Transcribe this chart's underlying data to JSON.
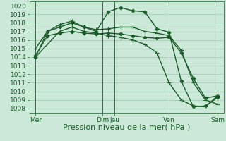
{
  "xlabel": "Pression niveau de la mer( hPa )",
  "bg_color": "#cce8d8",
  "grid_color": "#9cc8b0",
  "line_color": "#1a5c28",
  "vline_color": "#3a6a48",
  "ylim": [
    1007.5,
    1020.5
  ],
  "yticks": [
    1008,
    1009,
    1010,
    1011,
    1012,
    1013,
    1014,
    1015,
    1016,
    1017,
    1018,
    1019,
    1020
  ],
  "xlim": [
    0,
    16
  ],
  "day_positions": [
    0.5,
    6.0,
    7.0,
    11.5,
    15.5
  ],
  "day_labels": [
    "Mer",
    "Dim",
    "Jeu",
    "Ven",
    "Sam"
  ],
  "vline_positions": [
    0.5,
    6.0,
    7.0,
    11.5,
    15.5
  ],
  "series": [
    {
      "x": [
        0.5,
        1.5,
        2.5,
        3.5,
        4.5,
        5.5,
        6.5,
        7.5,
        8.5,
        9.5,
        10.5,
        11.5,
        12.5,
        13.5,
        14.5,
        15.5
      ],
      "y": [
        1014.0,
        1017.0,
        1017.5,
        1018.0,
        1017.5,
        1017.0,
        1019.3,
        1019.8,
        1019.4,
        1019.3,
        1017.3,
        1016.9,
        1011.2,
        1008.2,
        1008.3,
        1009.3
      ],
      "marker": "D",
      "markersize": 2.5
    },
    {
      "x": [
        0.5,
        1.5,
        2.5,
        3.5,
        4.5,
        5.5,
        6.5,
        7.5,
        8.5,
        9.5,
        10.5,
        11.5,
        12.5,
        13.5,
        14.5,
        15.5
      ],
      "y": [
        1015.0,
        1017.0,
        1017.8,
        1018.2,
        1017.5,
        1017.2,
        1017.3,
        1017.5,
        1017.5,
        1017.0,
        1016.8,
        1016.5,
        1014.8,
        1011.0,
        1009.0,
        1008.5
      ],
      "marker": "+",
      "markersize": 4
    },
    {
      "x": [
        0.5,
        1.5,
        2.5,
        3.5,
        4.5,
        5.5,
        6.5,
        7.5,
        8.5,
        9.5,
        10.5,
        11.5,
        12.5,
        13.5,
        14.5,
        15.5
      ],
      "y": [
        1014.2,
        1016.5,
        1016.8,
        1017.0,
        1016.8,
        1016.7,
        1016.8,
        1016.7,
        1016.5,
        1016.3,
        1016.2,
        1016.3,
        1014.5,
        1011.5,
        1009.2,
        1009.5
      ],
      "marker": "D",
      "markersize": 2.5
    },
    {
      "x": [
        0.5,
        2.5,
        3.5,
        4.5,
        5.5,
        6.5,
        7.5,
        8.5,
        9.5,
        10.5,
        11.5,
        12.5,
        13.5,
        14.5,
        15.5
      ],
      "y": [
        1014.0,
        1017.0,
        1017.5,
        1017.0,
        1016.8,
        1016.5,
        1016.3,
        1016.0,
        1015.5,
        1014.5,
        1011.0,
        1009.0,
        1008.3,
        1008.2,
        1009.5
      ],
      "marker": "+",
      "markersize": 4
    }
  ],
  "xlabel_fontsize": 8,
  "tick_fontsize": 6.5,
  "linewidth": 1.0
}
